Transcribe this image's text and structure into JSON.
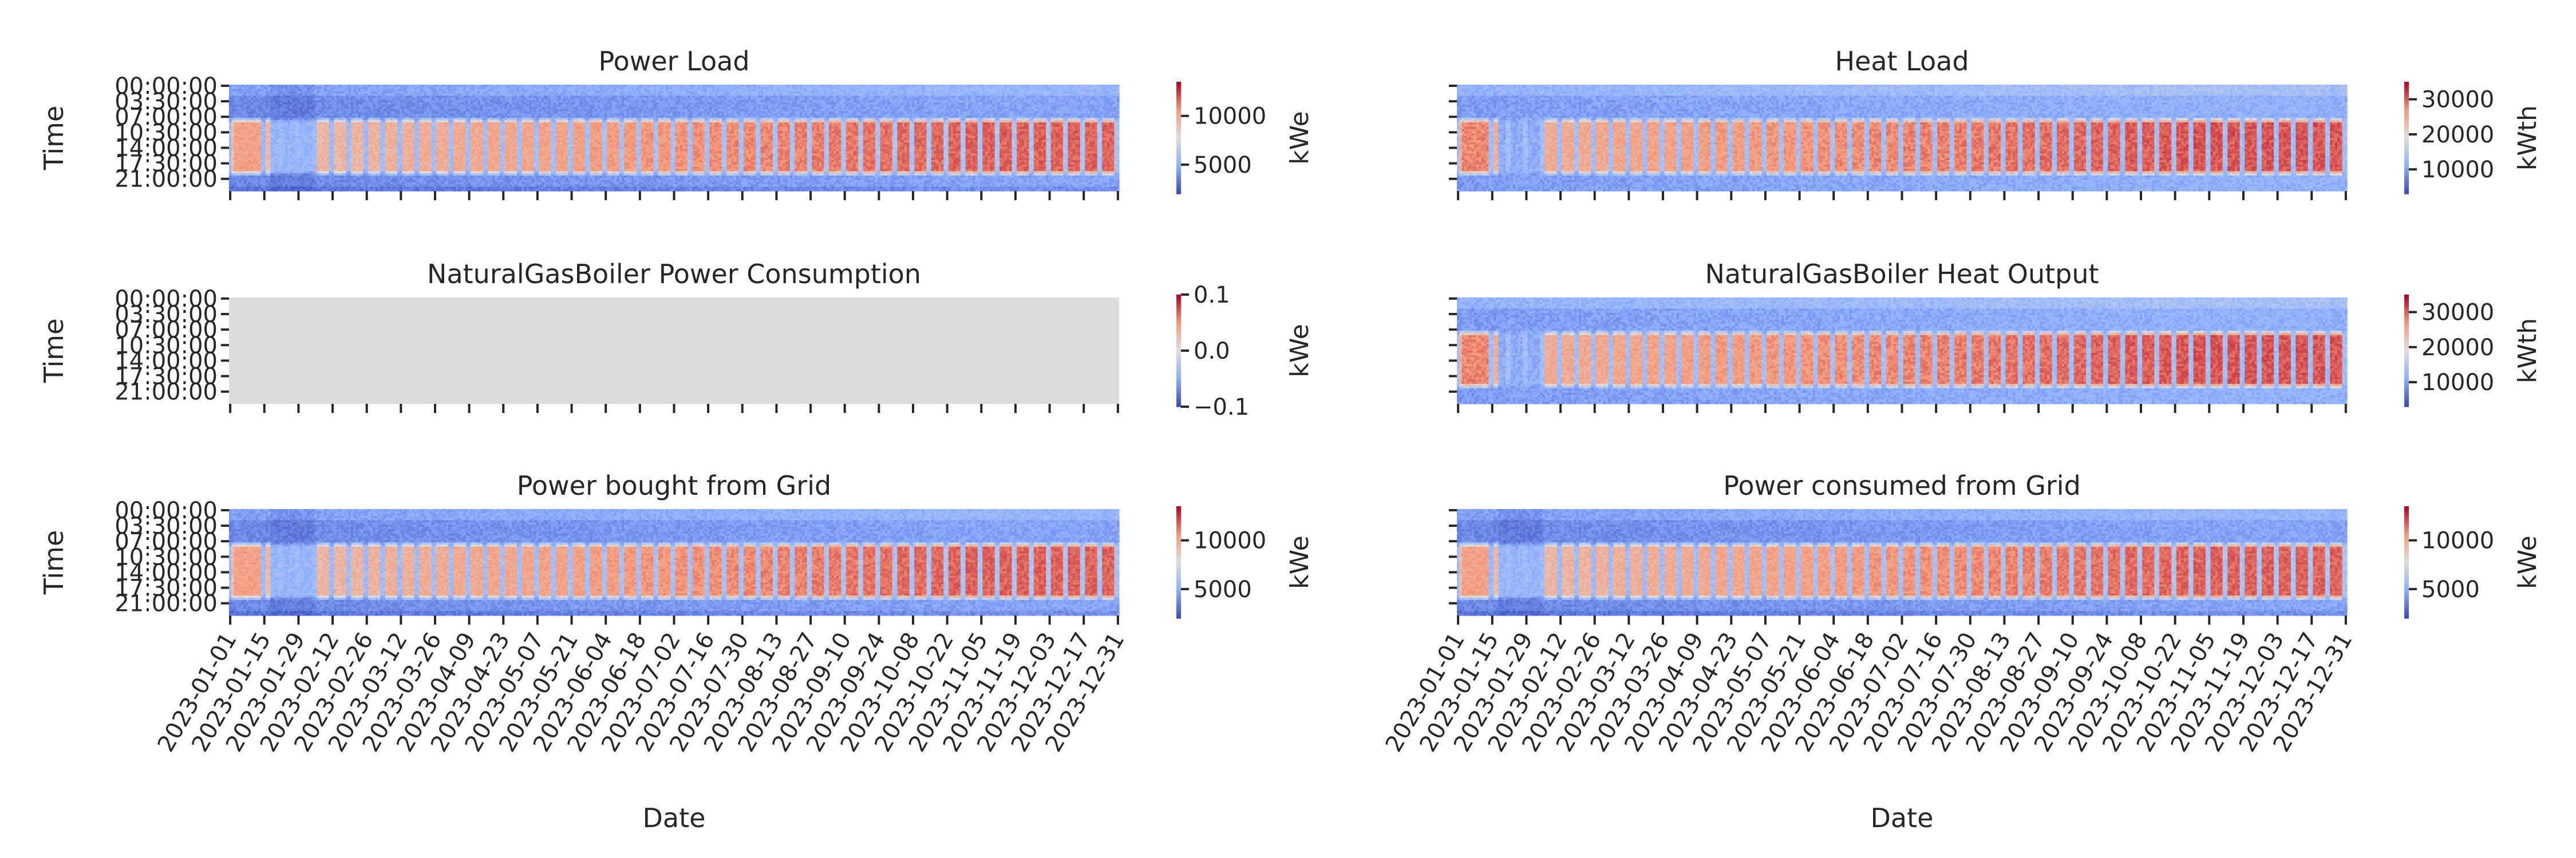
{
  "figure": {
    "xlabel": "Date",
    "ylabel": "Time",
    "time_ticks": [
      "00:00:00",
      "03:30:00",
      "07:00:00",
      "10:30:00",
      "14:00:00",
      "17:30:00",
      "21:00:00"
    ],
    "date_ticks": [
      "2023-01-01",
      "2023-01-15",
      "2023-01-29",
      "2023-02-12",
      "2023-02-26",
      "2023-03-12",
      "2023-03-26",
      "2023-04-09",
      "2023-04-23",
      "2023-05-07",
      "2023-05-21",
      "2023-06-04",
      "2023-06-18",
      "2023-07-02",
      "2023-07-16",
      "2023-07-30",
      "2023-08-13",
      "2023-08-27",
      "2023-09-10",
      "2023-09-24",
      "2023-10-08",
      "2023-10-22",
      "2023-11-05",
      "2023-11-19",
      "2023-12-03",
      "2023-12-17",
      "2023-12-31"
    ],
    "colors": {
      "low": "#3b4cc0",
      "mid": "#dddddd",
      "high": "#b40426",
      "nodata": "#dcdcdc"
    }
  },
  "chart_data": [
    {
      "type": "heatmap",
      "title": "Power Load",
      "unit": "kWe",
      "cbar_ticks": [
        5000,
        10000
      ],
      "cbar_range": [
        2000,
        13500
      ],
      "data_range": [
        2000,
        13500
      ],
      "variant": "power"
    },
    {
      "type": "heatmap",
      "title": "Heat Load",
      "unit": "kWth",
      "cbar_ticks": [
        10000,
        20000,
        30000
      ],
      "cbar_range": [
        3000,
        35000
      ],
      "data_range": [
        3000,
        35000
      ],
      "variant": "heat"
    },
    {
      "type": "heatmap",
      "title": "NaturalGasBoiler Power Consumption",
      "unit": "kWe",
      "cbar_ticks": [
        -0.1,
        0.0,
        0.1
      ],
      "cbar_range": [
        -0.1,
        0.1
      ],
      "data_range": [
        0,
        0
      ],
      "variant": "zero"
    },
    {
      "type": "heatmap",
      "title": "NaturalGasBoiler Heat Output",
      "unit": "kWth",
      "cbar_ticks": [
        10000,
        20000,
        30000
      ],
      "cbar_range": [
        3000,
        35000
      ],
      "data_range": [
        3000,
        35000
      ],
      "variant": "heat"
    },
    {
      "type": "heatmap",
      "title": "Power bought from Grid",
      "unit": "kWe",
      "cbar_ticks": [
        5000,
        10000
      ],
      "cbar_range": [
        2000,
        13500
      ],
      "data_range": [
        2000,
        13500
      ],
      "variant": "power"
    },
    {
      "type": "heatmap",
      "title": "Power consumed from Grid",
      "unit": "kWe",
      "cbar_ticks": [
        5000,
        10000
      ],
      "cbar_range": [
        2000,
        13500
      ],
      "data_range": [
        2000,
        13500
      ],
      "variant": "power"
    }
  ]
}
